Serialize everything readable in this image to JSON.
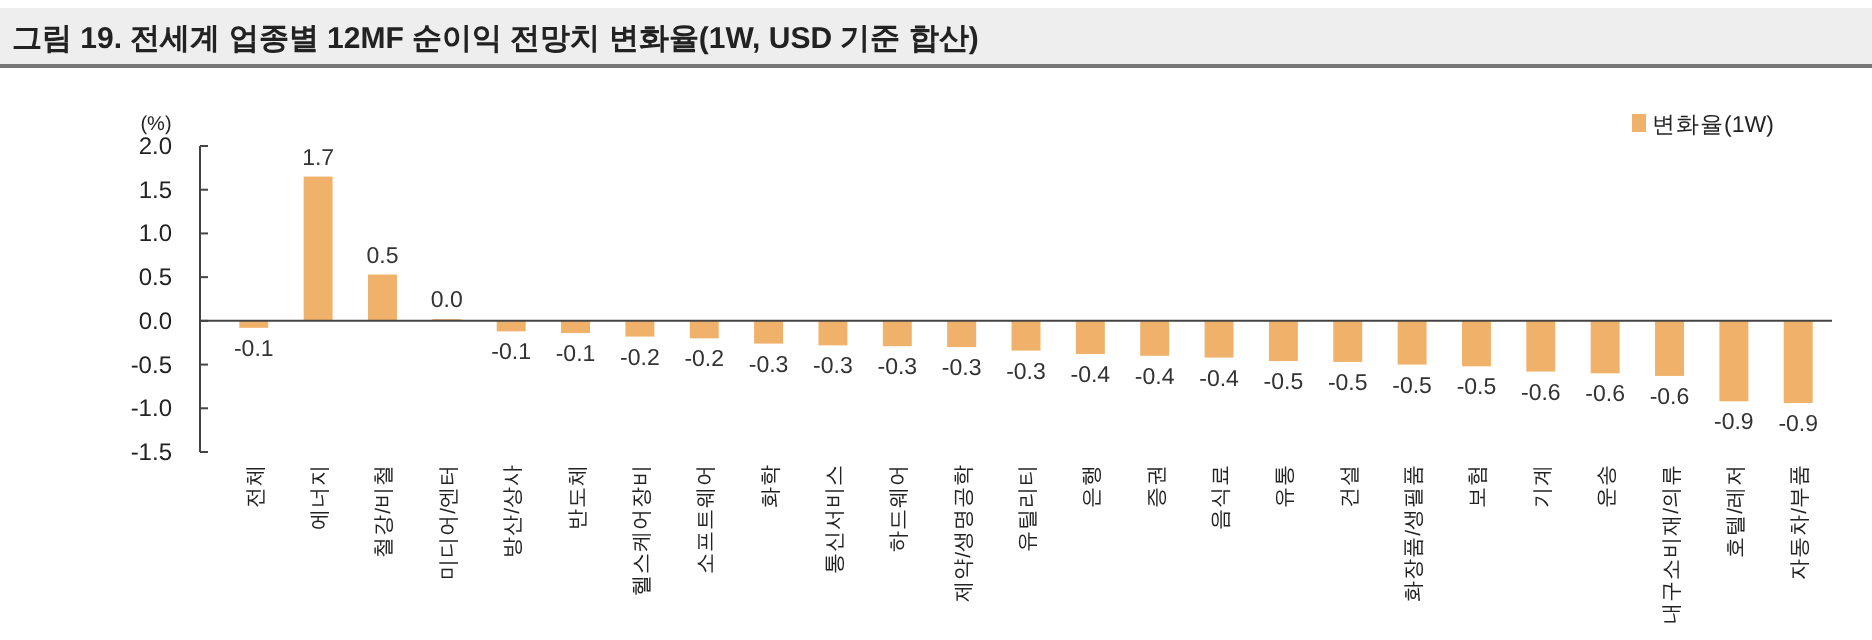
{
  "chart_data": {
    "type": "bar",
    "title": "그림 19. 전세계 업종별 12MF 순이익 전망치 변화율(1W, USD 기준 합산)",
    "ylabel": "(%)",
    "categories": [
      "전체",
      "에너지",
      "철강/비철",
      "미디어/엔터",
      "방산/상사",
      "반도체",
      "헬스케어장비",
      "소프트웨어",
      "화학",
      "통신서비스",
      "하드웨어",
      "제약/생명공학",
      "유틸리티",
      "은행",
      "증권",
      "음식료",
      "유통",
      "건설",
      "화장품/생필품",
      "보험",
      "기계",
      "운송",
      "내구소비재/의류",
      "호텔/레저",
      "자동차/부품"
    ],
    "series": [
      {
        "name": "변화율(1W)",
        "color": "#f0b26b",
        "values": [
          -0.08,
          1.65,
          0.53,
          0.02,
          -0.12,
          -0.14,
          -0.18,
          -0.2,
          -0.26,
          -0.28,
          -0.29,
          -0.3,
          -0.34,
          -0.38,
          -0.4,
          -0.42,
          -0.46,
          -0.47,
          -0.5,
          -0.52,
          -0.58,
          -0.6,
          -0.63,
          -0.92,
          -0.94
        ],
        "value_labels": [
          "-0.1",
          "1.7",
          "0.5",
          "0.0",
          "-0.1",
          "-0.1",
          "-0.2",
          "-0.2",
          "-0.3",
          "-0.3",
          "-0.3",
          "-0.3",
          "-0.3",
          "-0.4",
          "-0.4",
          "-0.4",
          "-0.5",
          "-0.5",
          "-0.5",
          "-0.5",
          "-0.6",
          "-0.6",
          "-0.6",
          "-0.9",
          "-0.9"
        ]
      }
    ],
    "ylim": [
      -1.5,
      2.0
    ],
    "yticks": [
      {
        "value": -1.5,
        "label": "-1.5"
      },
      {
        "value": -1.0,
        "label": "-1.0"
      },
      {
        "value": -0.5,
        "label": "-0.5"
      },
      {
        "value": 0,
        "label": "0.0"
      },
      {
        "value": 0.5,
        "label": "0.5"
      },
      {
        "value": 1.0,
        "label": "1.0"
      },
      {
        "value": 1.5,
        "label": "1.5"
      },
      {
        "value": 2.0,
        "label": "2.0"
      }
    ],
    "legend": "top right"
  }
}
